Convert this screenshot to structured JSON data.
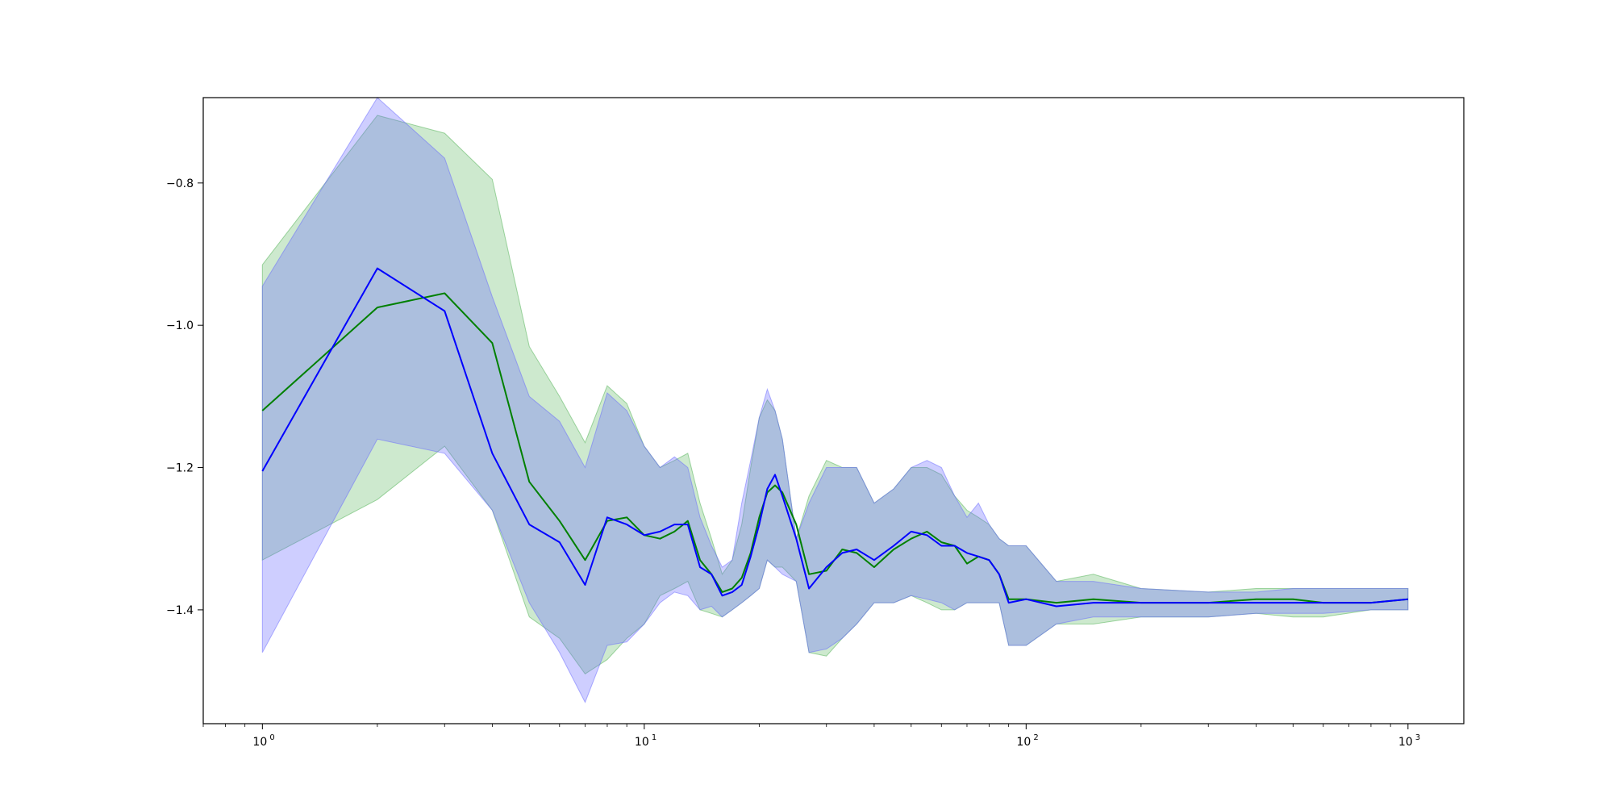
{
  "chart_data": {
    "type": "line",
    "title": "",
    "xlabel": "",
    "ylabel": "",
    "xscale": "log",
    "xlim": [
      0.7,
      1400
    ],
    "ylim": [
      -1.56,
      -0.68
    ],
    "grid": false,
    "legend": "none",
    "x_ticks": [
      {
        "base": "10",
        "exp": "0",
        "value": 1
      },
      {
        "base": "10",
        "exp": "1",
        "value": 10
      },
      {
        "base": "10",
        "exp": "2",
        "value": 100
      },
      {
        "base": "10",
        "exp": "3",
        "value": 1000
      }
    ],
    "y_ticks": [
      {
        "label": "−0.8",
        "value": -0.8
      },
      {
        "label": "−1.0",
        "value": -1.0
      },
      {
        "label": "−1.2",
        "value": -1.2
      },
      {
        "label": "−1.4",
        "value": -1.4
      }
    ],
    "series": [
      {
        "color": "#008000",
        "band_color": "#4caf50",
        "x": [
          1,
          2,
          3,
          4,
          5,
          6,
          7,
          8,
          9,
          10,
          11,
          12,
          13,
          14,
          15,
          16,
          17,
          18,
          19,
          20,
          21,
          22,
          23,
          25,
          27,
          30,
          33,
          36,
          40,
          45,
          50,
          55,
          60,
          65,
          70,
          75,
          80,
          85,
          90,
          100,
          120,
          150,
          200,
          300,
          400,
          500,
          600,
          800,
          1000
        ],
        "y": [
          -1.12,
          -0.975,
          -0.955,
          -1.025,
          -1.22,
          -1.275,
          -1.33,
          -1.275,
          -1.27,
          -1.295,
          -1.3,
          -1.29,
          -1.275,
          -1.33,
          -1.35,
          -1.375,
          -1.37,
          -1.355,
          -1.32,
          -1.27,
          -1.235,
          -1.225,
          -1.235,
          -1.28,
          -1.35,
          -1.345,
          -1.315,
          -1.32,
          -1.34,
          -1.315,
          -1.3,
          -1.29,
          -1.305,
          -1.31,
          -1.335,
          -1.325,
          -1.33,
          -1.35,
          -1.385,
          -1.385,
          -1.39,
          -1.385,
          -1.39,
          -1.39,
          -1.385,
          -1.385,
          -1.39,
          -1.39,
          -1.385
        ],
        "upper": [
          -0.915,
          -0.705,
          -0.73,
          -0.795,
          -1.03,
          -1.1,
          -1.165,
          -1.085,
          -1.11,
          -1.17,
          -1.2,
          -1.19,
          -1.18,
          -1.25,
          -1.3,
          -1.35,
          -1.33,
          -1.28,
          -1.2,
          -1.13,
          -1.105,
          -1.12,
          -1.16,
          -1.3,
          -1.24,
          -1.19,
          -1.2,
          -1.2,
          -1.25,
          -1.23,
          -1.2,
          -1.2,
          -1.21,
          -1.24,
          -1.26,
          -1.27,
          -1.28,
          -1.3,
          -1.31,
          -1.31,
          -1.36,
          -1.35,
          -1.37,
          -1.375,
          -1.37,
          -1.37,
          -1.37,
          -1.37,
          -1.37
        ],
        "lower": [
          -1.33,
          -1.245,
          -1.17,
          -1.26,
          -1.41,
          -1.44,
          -1.49,
          -1.47,
          -1.44,
          -1.42,
          -1.38,
          -1.37,
          -1.36,
          -1.4,
          -1.405,
          -1.41,
          -1.4,
          -1.39,
          -1.38,
          -1.37,
          -1.33,
          -1.34,
          -1.34,
          -1.36,
          -1.46,
          -1.465,
          -1.44,
          -1.42,
          -1.39,
          -1.39,
          -1.38,
          -1.39,
          -1.4,
          -1.4,
          -1.39,
          -1.39,
          -1.39,
          -1.39,
          -1.45,
          -1.45,
          -1.42,
          -1.42,
          -1.41,
          -1.41,
          -1.405,
          -1.41,
          -1.41,
          -1.4,
          -1.4
        ]
      },
      {
        "color": "#0000ff",
        "band_color": "#6666ff",
        "x": [
          1,
          2,
          3,
          4,
          5,
          6,
          7,
          8,
          9,
          10,
          11,
          12,
          13,
          14,
          15,
          16,
          17,
          18,
          19,
          20,
          21,
          22,
          23,
          25,
          27,
          30,
          33,
          36,
          40,
          45,
          50,
          55,
          60,
          65,
          70,
          75,
          80,
          85,
          90,
          100,
          120,
          150,
          200,
          300,
          400,
          500,
          600,
          800,
          1000
        ],
        "y": [
          -1.205,
          -0.92,
          -0.98,
          -1.18,
          -1.28,
          -1.305,
          -1.365,
          -1.27,
          -1.28,
          -1.295,
          -1.29,
          -1.28,
          -1.28,
          -1.34,
          -1.35,
          -1.38,
          -1.375,
          -1.365,
          -1.325,
          -1.28,
          -1.23,
          -1.21,
          -1.24,
          -1.3,
          -1.37,
          -1.34,
          -1.32,
          -1.315,
          -1.33,
          -1.31,
          -1.29,
          -1.295,
          -1.31,
          -1.31,
          -1.32,
          -1.325,
          -1.33,
          -1.35,
          -1.39,
          -1.385,
          -1.395,
          -1.39,
          -1.39,
          -1.39,
          -1.39,
          -1.39,
          -1.39,
          -1.39,
          -1.385
        ],
        "upper": [
          -0.945,
          -0.68,
          -0.765,
          -0.96,
          -1.1,
          -1.135,
          -1.2,
          -1.095,
          -1.12,
          -1.17,
          -1.2,
          -1.185,
          -1.2,
          -1.27,
          -1.31,
          -1.34,
          -1.33,
          -1.25,
          -1.19,
          -1.13,
          -1.09,
          -1.12,
          -1.16,
          -1.3,
          -1.25,
          -1.2,
          -1.2,
          -1.2,
          -1.25,
          -1.23,
          -1.2,
          -1.19,
          -1.2,
          -1.24,
          -1.27,
          -1.25,
          -1.28,
          -1.3,
          -1.31,
          -1.31,
          -1.36,
          -1.36,
          -1.37,
          -1.375,
          -1.375,
          -1.37,
          -1.37,
          -1.37,
          -1.37
        ],
        "lower": [
          -1.46,
          -1.16,
          -1.18,
          -1.26,
          -1.39,
          -1.46,
          -1.53,
          -1.45,
          -1.445,
          -1.42,
          -1.39,
          -1.375,
          -1.38,
          -1.4,
          -1.395,
          -1.41,
          -1.4,
          -1.39,
          -1.38,
          -1.37,
          -1.33,
          -1.34,
          -1.35,
          -1.36,
          -1.46,
          -1.455,
          -1.44,
          -1.42,
          -1.39,
          -1.39,
          -1.38,
          -1.385,
          -1.39,
          -1.4,
          -1.39,
          -1.39,
          -1.39,
          -1.39,
          -1.45,
          -1.45,
          -1.42,
          -1.41,
          -1.41,
          -1.41,
          -1.405,
          -1.405,
          -1.405,
          -1.4,
          -1.4
        ]
      }
    ]
  }
}
